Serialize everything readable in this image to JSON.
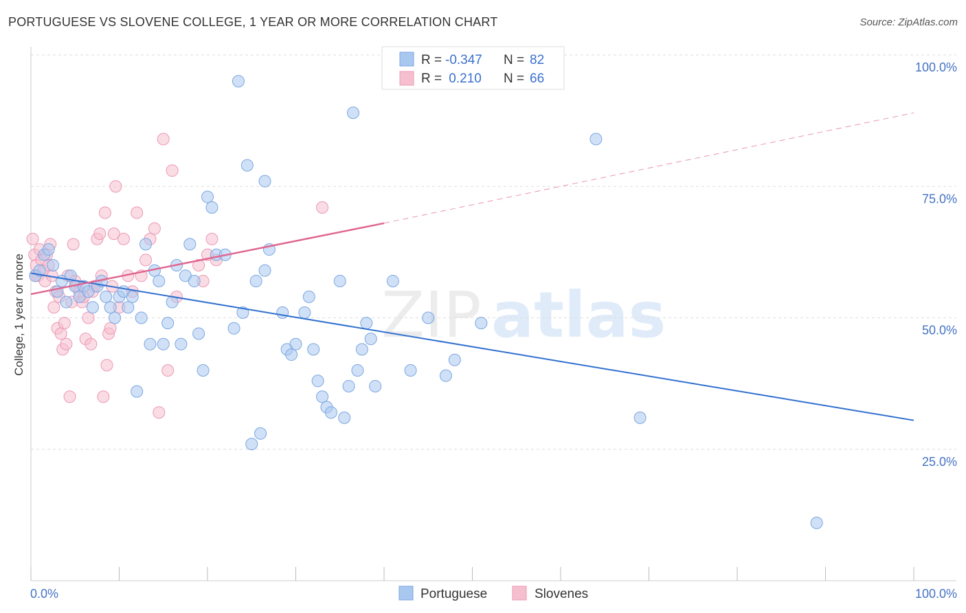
{
  "title": "PORTUGUESE VS SLOVENE COLLEGE, 1 YEAR OR MORE CORRELATION CHART",
  "source": "Source: ZipAtlas.com",
  "watermark": {
    "zip": "ZIP",
    "atlas": "atlas"
  },
  "colors": {
    "blue_fill": "#a9c8f0",
    "blue_stroke": "#7ba6e0",
    "blue_line": "#2f6fd0",
    "pink_fill": "#f6bfd0",
    "pink_stroke": "#ec98b4",
    "pink_line": "#e06690",
    "grid": "#dddddd",
    "axis_text": "#4472c4"
  },
  "legend": {
    "rows": [
      {
        "r_label": "R =",
        "r_value": "-0.347",
        "n_label": "N =",
        "n_value": "82"
      },
      {
        "r_label": "R =",
        "r_value": " 0.210",
        "n_label": "N =",
        "n_value": "66"
      }
    ]
  },
  "bottom_legend": {
    "portuguese": "Portuguese",
    "slovenes": "Slovenes"
  },
  "chart_data": {
    "type": "scatter",
    "title": "PORTUGUESE VS SLOVENE COLLEGE, 1 YEAR OR MORE CORRELATION CHART",
    "xlabel": "",
    "ylabel": "College, 1 year or more",
    "xlim": [
      0,
      100
    ],
    "ylim": [
      0,
      100
    ],
    "x_tick_labels": [
      "0.0%",
      "100.0%"
    ],
    "y_tick_labels": [
      "100.0%",
      "75.0%",
      "50.0%",
      "25.0%"
    ],
    "y_ticks": [
      100,
      75,
      50,
      25
    ],
    "series": [
      {
        "name": "Portuguese",
        "R": -0.347,
        "N": 82,
        "trend": {
          "x0": 0,
          "y0": 58.5,
          "x1": 100,
          "y1": 30.5
        },
        "points": [
          [
            0.5,
            58
          ],
          [
            1,
            59
          ],
          [
            1.5,
            62
          ],
          [
            2,
            63
          ],
          [
            2.5,
            60
          ],
          [
            3,
            55
          ],
          [
            3.5,
            57
          ],
          [
            4,
            53
          ],
          [
            4.5,
            58
          ],
          [
            5,
            56
          ],
          [
            5.5,
            54
          ],
          [
            6,
            56
          ],
          [
            6.5,
            55
          ],
          [
            7,
            52
          ],
          [
            7.5,
            56
          ],
          [
            8,
            57
          ],
          [
            8.5,
            54
          ],
          [
            9,
            52
          ],
          [
            9.5,
            50
          ],
          [
            10,
            54
          ],
          [
            10.5,
            55
          ],
          [
            11,
            52
          ],
          [
            11.5,
            54
          ],
          [
            12,
            36
          ],
          [
            12.5,
            50
          ],
          [
            13,
            64
          ],
          [
            13.5,
            45
          ],
          [
            14,
            59
          ],
          [
            14.5,
            57
          ],
          [
            15,
            45
          ],
          [
            15.5,
            49
          ],
          [
            16,
            53
          ],
          [
            16.5,
            60
          ],
          [
            17,
            45
          ],
          [
            17.5,
            58
          ],
          [
            18,
            64
          ],
          [
            18.5,
            57
          ],
          [
            19,
            47
          ],
          [
            19.5,
            40
          ],
          [
            20,
            73
          ],
          [
            20.5,
            71
          ],
          [
            21,
            62
          ],
          [
            22,
            62
          ],
          [
            23,
            48
          ],
          [
            24,
            51
          ],
          [
            23.5,
            95
          ],
          [
            24.5,
            79
          ],
          [
            25.5,
            57
          ],
          [
            26.5,
            59
          ],
          [
            27,
            63
          ],
          [
            26.5,
            76
          ],
          [
            25,
            26
          ],
          [
            26,
            28
          ],
          [
            28.5,
            51
          ],
          [
            29,
            44
          ],
          [
            29.5,
            43
          ],
          [
            30,
            45
          ],
          [
            31,
            51
          ],
          [
            31.5,
            54
          ],
          [
            32,
            44
          ],
          [
            32.5,
            38
          ],
          [
            33,
            35
          ],
          [
            33.5,
            33
          ],
          [
            34,
            32
          ],
          [
            35,
            57
          ],
          [
            35.5,
            31
          ],
          [
            36,
            37
          ],
          [
            37,
            40
          ],
          [
            37.5,
            44
          ],
          [
            38,
            49
          ],
          [
            38.5,
            46
          ],
          [
            39,
            37
          ],
          [
            41,
            57
          ],
          [
            43,
            40
          ],
          [
            45,
            50
          ],
          [
            47,
            39
          ],
          [
            48,
            42
          ],
          [
            51,
            49
          ],
          [
            36.5,
            89
          ],
          [
            64,
            84
          ],
          [
            69,
            31
          ],
          [
            89,
            11
          ]
        ]
      },
      {
        "name": "Slovenes",
        "R": 0.21,
        "N": 66,
        "trend": {
          "x0": 0,
          "y0": 54.5,
          "x1": 40,
          "y1": 68,
          "dashed_to": {
            "x": 100,
            "y": 89
          }
        },
        "points": [
          [
            0.2,
            65
          ],
          [
            0.4,
            62
          ],
          [
            0.6,
            60
          ],
          [
            0.8,
            58
          ],
          [
            1,
            63
          ],
          [
            1.2,
            61
          ],
          [
            1.4,
            59
          ],
          [
            1.6,
            57
          ],
          [
            1.8,
            62
          ],
          [
            2,
            60
          ],
          [
            2.2,
            64
          ],
          [
            2.4,
            58
          ],
          [
            2.6,
            52
          ],
          [
            2.8,
            55
          ],
          [
            3,
            48
          ],
          [
            3.2,
            54
          ],
          [
            3.4,
            47
          ],
          [
            3.6,
            44
          ],
          [
            3.8,
            49
          ],
          [
            4,
            45
          ],
          [
            4.2,
            58
          ],
          [
            4.4,
            35
          ],
          [
            4.6,
            53
          ],
          [
            4.8,
            64
          ],
          [
            5,
            57
          ],
          [
            5.2,
            56
          ],
          [
            5.5,
            55
          ],
          [
            5.8,
            53
          ],
          [
            6,
            54
          ],
          [
            6.2,
            46
          ],
          [
            6.5,
            50
          ],
          [
            6.8,
            45
          ],
          [
            7,
            55
          ],
          [
            7.2,
            56
          ],
          [
            7.5,
            65
          ],
          [
            7.8,
            66
          ],
          [
            8,
            58
          ],
          [
            8.2,
            35
          ],
          [
            8.4,
            70
          ],
          [
            8.6,
            41
          ],
          [
            8.8,
            47
          ],
          [
            9,
            48
          ],
          [
            9.2,
            56
          ],
          [
            9.4,
            66
          ],
          [
            9.6,
            75
          ],
          [
            10,
            52
          ],
          [
            10.5,
            65
          ],
          [
            11,
            58
          ],
          [
            11.5,
            55
          ],
          [
            12,
            70
          ],
          [
            12.5,
            58
          ],
          [
            13,
            61
          ],
          [
            13.5,
            65
          ],
          [
            14,
            67
          ],
          [
            14.5,
            32
          ],
          [
            15,
            84
          ],
          [
            15.5,
            40
          ],
          [
            16,
            78
          ],
          [
            16.5,
            54
          ],
          [
            19,
            60
          ],
          [
            19.5,
            57
          ],
          [
            20,
            62
          ],
          [
            20.5,
            65
          ],
          [
            21,
            61
          ],
          [
            33,
            71
          ],
          [
            0.5,
            58
          ]
        ]
      }
    ]
  }
}
